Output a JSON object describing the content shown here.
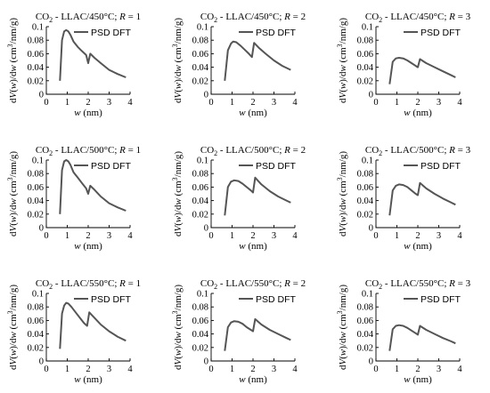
{
  "figure": {
    "panel_titles": [
      [
        "CO",
        "2",
        " - LLAC/450°C; ",
        "R",
        " = 1"
      ],
      [
        "CO",
        "2",
        " - LLAC/450°C; ",
        "R",
        " = 2"
      ],
      [
        "CO",
        "2",
        " - LLAC/450°C; ",
        "R",
        " = 3"
      ],
      [
        "CO",
        "2",
        " - LLAC/500°C; ",
        "R",
        " = 1"
      ],
      [
        "CO",
        "2",
        " - LLAC/500°C; ",
        "R",
        " = 2"
      ],
      [
        "CO",
        "2",
        " - LLAC/500°C; ",
        "R",
        " = 3"
      ],
      [
        "CO",
        "2",
        " - LLAC/550°C; ",
        "R",
        " = 1"
      ],
      [
        "CO",
        "2",
        " - LLAC/550°C; ",
        "R",
        " = 2"
      ],
      [
        "CO",
        "2",
        " - LLAC/550°C; ",
        "R",
        " = 3"
      ]
    ],
    "xlabel_parts": [
      "w",
      " (nm)"
    ],
    "ylabel_parts": [
      "d",
      "V",
      "(",
      "w",
      ")/d",
      "w",
      " (cm",
      "3",
      "/nm/g)"
    ],
    "legend_label": "PSD DFT",
    "line_color": "#555555"
  },
  "chart_data": [
    {
      "type": "line",
      "title": "CO2 - LLAC/450°C; R = 1",
      "xlabel": "w (nm)",
      "ylabel": "dV(w)/dw (cm3/nm/g)",
      "xlim": [
        0,
        4
      ],
      "ylim": [
        0,
        0.1
      ],
      "xticks": [
        0,
        1,
        2,
        3,
        4
      ],
      "yticks": [
        0,
        0.02,
        0.04,
        0.06,
        0.08,
        0.1
      ],
      "legend": "top-right",
      "series": [
        {
          "name": "PSD DFT",
          "x": [
            0.65,
            0.75,
            0.85,
            0.95,
            1.05,
            1.15,
            1.3,
            1.5,
            1.7,
            1.9,
            2.0,
            2.1,
            2.3,
            2.6,
            3.0,
            3.4,
            3.8
          ],
          "y": [
            0.02,
            0.08,
            0.093,
            0.095,
            0.093,
            0.088,
            0.078,
            0.07,
            0.064,
            0.058,
            0.046,
            0.06,
            0.054,
            0.046,
            0.036,
            0.03,
            0.025
          ]
        }
      ]
    },
    {
      "type": "line",
      "title": "CO2 - LLAC/450°C; R = 2",
      "xlabel": "w (nm)",
      "ylabel": "dV(w)/dw (cm3/nm/g)",
      "xlim": [
        0,
        4
      ],
      "ylim": [
        0,
        0.1
      ],
      "xticks": [
        0,
        1,
        2,
        3,
        4
      ],
      "yticks": [
        0,
        0.02,
        0.04,
        0.06,
        0.08,
        0.1
      ],
      "legend": "top-right",
      "series": [
        {
          "name": "PSD DFT",
          "x": [
            0.65,
            0.8,
            0.95,
            1.05,
            1.2,
            1.4,
            1.6,
            1.8,
            1.95,
            2.05,
            2.3,
            2.6,
            3.0,
            3.4,
            3.8
          ],
          "y": [
            0.02,
            0.065,
            0.075,
            0.078,
            0.077,
            0.072,
            0.066,
            0.06,
            0.055,
            0.076,
            0.068,
            0.06,
            0.05,
            0.042,
            0.036
          ]
        }
      ]
    },
    {
      "type": "line",
      "title": "CO2 - LLAC/450°C; R = 3",
      "xlabel": "w (nm)",
      "ylabel": "dV(w)/dw (cm3/nm/g)",
      "xlim": [
        0,
        4
      ],
      "ylim": [
        0,
        0.1
      ],
      "xticks": [
        0,
        1,
        2,
        3,
        4
      ],
      "yticks": [
        0,
        0.02,
        0.04,
        0.06,
        0.08,
        0.1
      ],
      "legend": "top-right",
      "series": [
        {
          "name": "PSD DFT",
          "x": [
            0.65,
            0.8,
            0.95,
            1.1,
            1.3,
            1.5,
            1.7,
            1.9,
            2.0,
            2.1,
            2.4,
            2.8,
            3.2,
            3.6,
            3.8
          ],
          "y": [
            0.015,
            0.048,
            0.053,
            0.054,
            0.053,
            0.05,
            0.046,
            0.042,
            0.04,
            0.052,
            0.046,
            0.04,
            0.034,
            0.028,
            0.025
          ]
        }
      ]
    },
    {
      "type": "line",
      "title": "CO2 - LLAC/500°C; R = 1",
      "xlabel": "w (nm)",
      "ylabel": "dV(w)/dw (cm3/nm/g)",
      "xlim": [
        0,
        4
      ],
      "ylim": [
        0,
        0.1
      ],
      "xticks": [
        0,
        1,
        2,
        3,
        4
      ],
      "yticks": [
        0,
        0.02,
        0.04,
        0.06,
        0.08,
        0.1
      ],
      "legend": "top-right",
      "series": [
        {
          "name": "PSD DFT",
          "x": [
            0.65,
            0.75,
            0.85,
            0.95,
            1.05,
            1.15,
            1.3,
            1.5,
            1.7,
            1.9,
            2.0,
            2.1,
            2.3,
            2.6,
            3.0,
            3.4,
            3.8
          ],
          "y": [
            0.02,
            0.085,
            0.098,
            0.1,
            0.098,
            0.093,
            0.082,
            0.074,
            0.066,
            0.058,
            0.05,
            0.062,
            0.056,
            0.046,
            0.036,
            0.03,
            0.025
          ]
        }
      ]
    },
    {
      "type": "line",
      "title": "CO2 - LLAC/500°C; R = 2",
      "xlabel": "w (nm)",
      "ylabel": "dV(w)/dw (cm3/nm/g)",
      "xlim": [
        0,
        4
      ],
      "ylim": [
        0,
        0.1
      ],
      "xticks": [
        0,
        1,
        2,
        3,
        4
      ],
      "yticks": [
        0,
        0.02,
        0.04,
        0.06,
        0.08,
        0.1
      ],
      "legend": "top-right",
      "series": [
        {
          "name": "PSD DFT",
          "x": [
            0.65,
            0.8,
            0.95,
            1.1,
            1.3,
            1.5,
            1.7,
            1.9,
            2.0,
            2.1,
            2.4,
            2.8,
            3.2,
            3.6,
            3.8
          ],
          "y": [
            0.018,
            0.06,
            0.068,
            0.07,
            0.069,
            0.065,
            0.06,
            0.055,
            0.052,
            0.074,
            0.064,
            0.054,
            0.046,
            0.04,
            0.037
          ]
        }
      ]
    },
    {
      "type": "line",
      "title": "CO2 - LLAC/500°C; R = 3",
      "xlabel": "w (nm)",
      "ylabel": "dV(w)/dw (cm3/nm/g)",
      "xlim": [
        0,
        4
      ],
      "ylim": [
        0,
        0.1
      ],
      "xticks": [
        0,
        1,
        2,
        3,
        4
      ],
      "yticks": [
        0,
        0.02,
        0.04,
        0.06,
        0.08,
        0.1
      ],
      "legend": "top-right",
      "series": [
        {
          "name": "PSD DFT",
          "x": [
            0.65,
            0.8,
            0.95,
            1.1,
            1.3,
            1.5,
            1.7,
            1.9,
            2.0,
            2.1,
            2.4,
            2.8,
            3.2,
            3.6,
            3.8
          ],
          "y": [
            0.018,
            0.055,
            0.062,
            0.064,
            0.063,
            0.06,
            0.055,
            0.05,
            0.048,
            0.066,
            0.058,
            0.05,
            0.043,
            0.037,
            0.034
          ]
        }
      ]
    },
    {
      "type": "line",
      "title": "CO2 - LLAC/550°C; R = 1",
      "xlabel": "w (nm)",
      "ylabel": "dV(w)/dw (cm3/nm/g)",
      "xlim": [
        0,
        4
      ],
      "ylim": [
        0,
        0.1
      ],
      "xticks": [
        0,
        1,
        2,
        3,
        4
      ],
      "yticks": [
        0,
        0.02,
        0.04,
        0.06,
        0.08,
        0.1
      ],
      "legend": "top-right",
      "series": [
        {
          "name": "PSD DFT",
          "x": [
            0.65,
            0.75,
            0.85,
            0.95,
            1.05,
            1.2,
            1.4,
            1.6,
            1.8,
            1.95,
            2.05,
            2.3,
            2.6,
            3.0,
            3.4,
            3.8
          ],
          "y": [
            0.018,
            0.07,
            0.082,
            0.086,
            0.085,
            0.08,
            0.072,
            0.064,
            0.056,
            0.052,
            0.072,
            0.064,
            0.054,
            0.044,
            0.036,
            0.03
          ]
        }
      ]
    },
    {
      "type": "line",
      "title": "CO2 - LLAC/550°C; R = 2",
      "xlabel": "w (nm)",
      "ylabel": "dV(w)/dw (cm3/nm/g)",
      "xlim": [
        0,
        4
      ],
      "ylim": [
        0,
        0.1
      ],
      "xticks": [
        0,
        1,
        2,
        3,
        4
      ],
      "yticks": [
        0,
        0.02,
        0.04,
        0.06,
        0.08,
        0.1
      ],
      "legend": "top-right",
      "series": [
        {
          "name": "PSD DFT",
          "x": [
            0.65,
            0.8,
            0.95,
            1.1,
            1.3,
            1.5,
            1.7,
            1.9,
            2.0,
            2.1,
            2.4,
            2.8,
            3.2,
            3.6,
            3.8
          ],
          "y": [
            0.015,
            0.05,
            0.057,
            0.059,
            0.058,
            0.055,
            0.05,
            0.046,
            0.044,
            0.062,
            0.054,
            0.046,
            0.04,
            0.034,
            0.031
          ]
        }
      ]
    },
    {
      "type": "line",
      "title": "CO2 - LLAC/550°C; R = 3",
      "xlabel": "w (nm)",
      "ylabel": "dV(w)/dw (cm3/nm/g)",
      "xlim": [
        0,
        4
      ],
      "ylim": [
        0,
        0.1
      ],
      "xticks": [
        0,
        1,
        2,
        3,
        4
      ],
      "yticks": [
        0,
        0.02,
        0.04,
        0.06,
        0.08,
        0.1
      ],
      "legend": "top-right",
      "series": [
        {
          "name": "PSD DFT",
          "x": [
            0.65,
            0.8,
            0.95,
            1.1,
            1.3,
            1.5,
            1.7,
            1.9,
            2.0,
            2.1,
            2.4,
            2.8,
            3.2,
            3.6,
            3.8
          ],
          "y": [
            0.015,
            0.047,
            0.052,
            0.053,
            0.052,
            0.049,
            0.045,
            0.041,
            0.039,
            0.052,
            0.046,
            0.04,
            0.034,
            0.029,
            0.026
          ]
        }
      ]
    }
  ]
}
